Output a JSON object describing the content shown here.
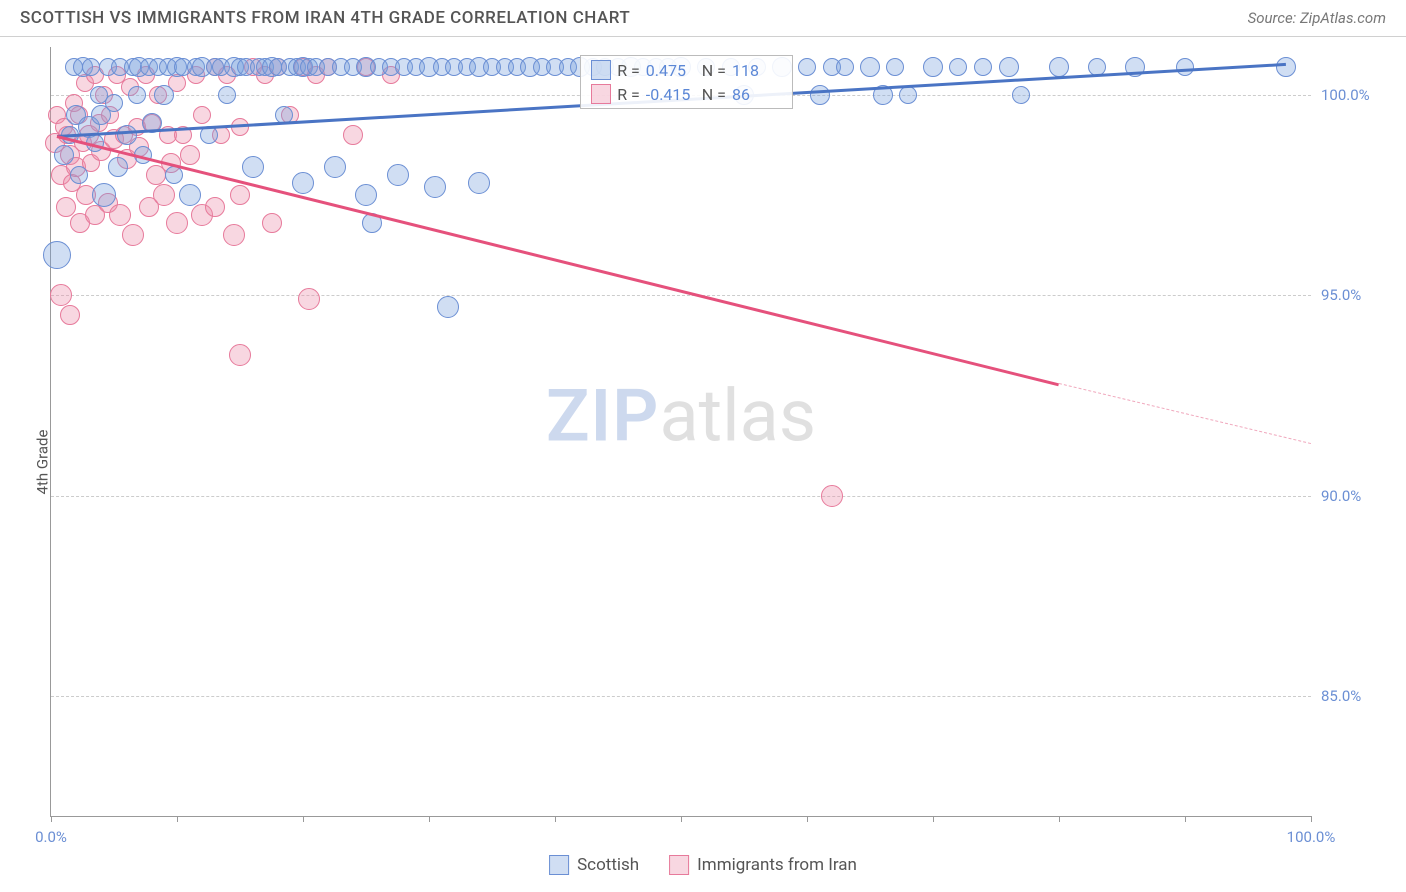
{
  "header": {
    "title": "SCOTTISH VS IMMIGRANTS FROM IRAN 4TH GRADE CORRELATION CHART",
    "source": "Source: ZipAtlas.com"
  },
  "watermark": {
    "zip": "ZIP",
    "atlas": "atlas"
  },
  "ylabel": "4th Grade",
  "chart": {
    "type": "scatter",
    "xlim": [
      0,
      100
    ],
    "ylim": [
      82,
      101.2
    ],
    "yticks": [
      85,
      90,
      95,
      100
    ],
    "ytick_labels": [
      "85.0%",
      "90.0%",
      "95.0%",
      "100.0%"
    ],
    "xticks": [
      0,
      10,
      20,
      30,
      40,
      50,
      60,
      70,
      80,
      90,
      100
    ],
    "xtick_labels_shown": {
      "0": "0.0%",
      "100": "100.0%"
    },
    "grid_color": "#cccccc",
    "axis_color": "#999999",
    "background": "#ffffff",
    "label_color": "#6b8fd4",
    "label_fontsize": 15
  },
  "series": {
    "scottish": {
      "label": "Scottish",
      "fill": "rgba(120,160,220,0.35)",
      "stroke": "#6b8fd4",
      "R": "0.475",
      "N": "118",
      "trend": {
        "x1": 0.5,
        "y1": 99.0,
        "x2": 98,
        "y2": 100.8,
        "color": "#4a74c4"
      },
      "points": [
        [
          0.5,
          96.0,
          14
        ],
        [
          1,
          98.5,
          10
        ],
        [
          1.5,
          99.0,
          9
        ],
        [
          1.8,
          100.7,
          9
        ],
        [
          2,
          99.5,
          10
        ],
        [
          2.2,
          98.0,
          9
        ],
        [
          2.5,
          100.7,
          10
        ],
        [
          3,
          99.2,
          11
        ],
        [
          3.2,
          100.7,
          9
        ],
        [
          3.5,
          98.8,
          9
        ],
        [
          3.8,
          100.0,
          9
        ],
        [
          4,
          99.5,
          10
        ],
        [
          4.2,
          97.5,
          12
        ],
        [
          4.5,
          100.7,
          9
        ],
        [
          5,
          99.8,
          9
        ],
        [
          5.3,
          98.2,
          10
        ],
        [
          5.5,
          100.7,
          9
        ],
        [
          6,
          99.0,
          10
        ],
        [
          6.5,
          100.7,
          9
        ],
        [
          6.8,
          100.0,
          9
        ],
        [
          7,
          100.7,
          10
        ],
        [
          7.3,
          98.5,
          9
        ],
        [
          7.8,
          100.7,
          9
        ],
        [
          8,
          99.3,
          10
        ],
        [
          8.5,
          100.7,
          9
        ],
        [
          9,
          100.0,
          10
        ],
        [
          9.3,
          100.7,
          9
        ],
        [
          9.8,
          98.0,
          9
        ],
        [
          10,
          100.7,
          10
        ],
        [
          10.5,
          100.7,
          9
        ],
        [
          11,
          97.5,
          11
        ],
        [
          11.5,
          100.7,
          9
        ],
        [
          12,
          100.7,
          10
        ],
        [
          12.5,
          99.0,
          9
        ],
        [
          13,
          100.7,
          9
        ],
        [
          13.5,
          100.7,
          9
        ],
        [
          14,
          100.0,
          9
        ],
        [
          14.5,
          100.7,
          10
        ],
        [
          15,
          100.7,
          9
        ],
        [
          15.5,
          100.7,
          9
        ],
        [
          16,
          98.2,
          11
        ],
        [
          16.5,
          100.7,
          9
        ],
        [
          17,
          100.7,
          9
        ],
        [
          17.5,
          100.7,
          10
        ],
        [
          18,
          100.7,
          9
        ],
        [
          18.5,
          99.5,
          9
        ],
        [
          19,
          100.7,
          9
        ],
        [
          19.5,
          100.7,
          9
        ],
        [
          20,
          100.7,
          10
        ],
        [
          20,
          97.8,
          11
        ],
        [
          20.5,
          100.7,
          9
        ],
        [
          21,
          100.7,
          9
        ],
        [
          22,
          100.7,
          9
        ],
        [
          22.5,
          98.2,
          11
        ],
        [
          23,
          100.7,
          9
        ],
        [
          24,
          100.7,
          9
        ],
        [
          25,
          100.7,
          10
        ],
        [
          25,
          97.5,
          11
        ],
        [
          25.5,
          96.8,
          10
        ],
        [
          26,
          100.7,
          9
        ],
        [
          27,
          100.7,
          9
        ],
        [
          27.5,
          98.0,
          11
        ],
        [
          28,
          100.7,
          9
        ],
        [
          29,
          100.7,
          9
        ],
        [
          30,
          100.7,
          10
        ],
        [
          30.5,
          97.7,
          11
        ],
        [
          31,
          100.7,
          9
        ],
        [
          31.5,
          94.7,
          11
        ],
        [
          32,
          100.7,
          9
        ],
        [
          33,
          100.7,
          9
        ],
        [
          34,
          100.7,
          10
        ],
        [
          34,
          97.8,
          11
        ],
        [
          35,
          100.7,
          9
        ],
        [
          36,
          100.7,
          9
        ],
        [
          37,
          100.7,
          9
        ],
        [
          38,
          100.7,
          10
        ],
        [
          39,
          100.7,
          9
        ],
        [
          40,
          100.7,
          9
        ],
        [
          41,
          100.7,
          9
        ],
        [
          42,
          100.7,
          10
        ],
        [
          43,
          100.7,
          9
        ],
        [
          44,
          100.7,
          9
        ],
        [
          45,
          100.7,
          9
        ],
        [
          46,
          100.7,
          10
        ],
        [
          47,
          100.7,
          9
        ],
        [
          48,
          100.7,
          9
        ],
        [
          49,
          100.7,
          9
        ],
        [
          50,
          100.7,
          10
        ],
        [
          52,
          100.7,
          9
        ],
        [
          54,
          100.7,
          9
        ],
        [
          55,
          100.0,
          10
        ],
        [
          56,
          100.7,
          9
        ],
        [
          58,
          100.7,
          10
        ],
        [
          60,
          100.7,
          9
        ],
        [
          61,
          100.0,
          10
        ],
        [
          62,
          100.7,
          9
        ],
        [
          63,
          100.7,
          9
        ],
        [
          65,
          100.7,
          10
        ],
        [
          66,
          100.0,
          10
        ],
        [
          67,
          100.7,
          9
        ],
        [
          68,
          100.0,
          9
        ],
        [
          70,
          100.7,
          10
        ],
        [
          72,
          100.7,
          9
        ],
        [
          74,
          100.7,
          9
        ],
        [
          76,
          100.7,
          10
        ],
        [
          77,
          100.0,
          9
        ],
        [
          80,
          100.7,
          10
        ],
        [
          83,
          100.7,
          9
        ],
        [
          86,
          100.7,
          10
        ],
        [
          90,
          100.7,
          9
        ],
        [
          98,
          100.7,
          10
        ]
      ]
    },
    "iran": {
      "label": "Immigrants from Iran",
      "fill": "rgba(235,140,170,0.35)",
      "stroke": "#e77a9b",
      "R": "-0.415",
      "N": "86",
      "trend_solid": {
        "x1": 0.5,
        "y1": 99.0,
        "x2": 80,
        "y2": 92.8,
        "color": "#e5517c"
      },
      "trend_dash": {
        "x1": 80,
        "y1": 92.8,
        "x2": 100,
        "y2": 91.3,
        "color": "#f0a8bd"
      },
      "points": [
        [
          0.3,
          98.8,
          10
        ],
        [
          0.5,
          99.5,
          9
        ],
        [
          0.8,
          98.0,
          10
        ],
        [
          1,
          99.2,
          9
        ],
        [
          1.2,
          97.2,
          10
        ],
        [
          1.3,
          99.0,
          9
        ],
        [
          1.5,
          98.5,
          10
        ],
        [
          1.7,
          97.8,
          9
        ],
        [
          1.8,
          99.8,
          9
        ],
        [
          2,
          98.2,
          10
        ],
        [
          2.2,
          99.5,
          9
        ],
        [
          2.3,
          96.8,
          10
        ],
        [
          2.5,
          98.8,
          9
        ],
        [
          2.7,
          100.3,
          9
        ],
        [
          2.8,
          97.5,
          10
        ],
        [
          3,
          99.0,
          10
        ],
        [
          3.2,
          98.3,
          9
        ],
        [
          3.5,
          100.5,
          9
        ],
        [
          3.5,
          97.0,
          10
        ],
        [
          3.8,
          99.3,
          9
        ],
        [
          4,
          98.6,
          10
        ],
        [
          4.2,
          100.0,
          9
        ],
        [
          4.5,
          97.3,
          10
        ],
        [
          4.7,
          99.5,
          9
        ],
        [
          5,
          98.9,
          10
        ],
        [
          5.2,
          100.5,
          9
        ],
        [
          5.5,
          97.0,
          11
        ],
        [
          5.8,
          99.0,
          9
        ],
        [
          6,
          98.4,
          10
        ],
        [
          6.3,
          100.2,
          9
        ],
        [
          6.5,
          96.5,
          11
        ],
        [
          6.8,
          99.2,
          9
        ],
        [
          7,
          98.7,
          10
        ],
        [
          7.5,
          100.5,
          9
        ],
        [
          7.8,
          97.2,
          10
        ],
        [
          8,
          99.3,
          9
        ],
        [
          8.3,
          98.0,
          10
        ],
        [
          8.5,
          100.0,
          9
        ],
        [
          9,
          97.5,
          11
        ],
        [
          9.3,
          99.0,
          9
        ],
        [
          9.5,
          98.3,
          10
        ],
        [
          10,
          100.3,
          9
        ],
        [
          10,
          96.8,
          11
        ],
        [
          10.5,
          99.0,
          9
        ],
        [
          11,
          98.5,
          10
        ],
        [
          11.5,
          100.5,
          9
        ],
        [
          12,
          97.0,
          11
        ],
        [
          12,
          99.5,
          9
        ],
        [
          13,
          100.7,
          9
        ],
        [
          13,
          97.2,
          10
        ],
        [
          13.5,
          99.0,
          9
        ],
        [
          14,
          100.5,
          9
        ],
        [
          14.5,
          96.5,
          11
        ],
        [
          15,
          99.2,
          9
        ],
        [
          15,
          93.5,
          11
        ],
        [
          15,
          97.5,
          10
        ],
        [
          16,
          100.7,
          9
        ],
        [
          17,
          100.5,
          9
        ],
        [
          17.5,
          96.8,
          10
        ],
        [
          18,
          100.7,
          9
        ],
        [
          19,
          99.5,
          9
        ],
        [
          20,
          100.7,
          9
        ],
        [
          20.5,
          94.9,
          11
        ],
        [
          21,
          100.5,
          9
        ],
        [
          22,
          100.7,
          9
        ],
        [
          24,
          99.0,
          10
        ],
        [
          25,
          100.7,
          9
        ],
        [
          27,
          100.5,
          9
        ],
        [
          62,
          90.0,
          11
        ],
        [
          0.8,
          95.0,
          11
        ],
        [
          1.5,
          94.5,
          10
        ]
      ]
    }
  },
  "legend_top": {
    "r_label": "R =",
    "n_label": "N ="
  },
  "legend_bottom": {
    "items": [
      "scottish",
      "iran"
    ]
  }
}
